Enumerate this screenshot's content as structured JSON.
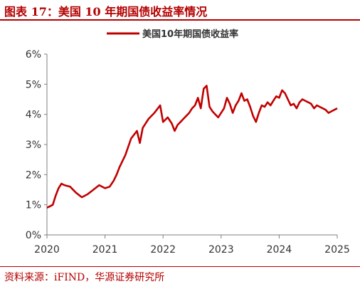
{
  "figure": {
    "title": "图表 17：美国 10 年期国债收益率情况",
    "source": "资料来源：iFIND，华源证券研究所"
  },
  "colors": {
    "line": "#c00000",
    "accent": "#b40000",
    "axis": "#7f7f7f"
  },
  "chart_data": {
    "type": "line",
    "title": "",
    "xlabel": "",
    "ylabel": "",
    "legend_position": "top-center",
    "grid": false,
    "x_ticks": [
      "2020",
      "2021",
      "2022",
      "2023",
      "2024",
      "2025"
    ],
    "y_ticks": [
      "0%",
      "1%",
      "2%",
      "3%",
      "4%",
      "5%",
      "6%"
    ],
    "ylim": [
      0,
      6
    ],
    "xlim": [
      2020.0,
      2025.0
    ],
    "series": [
      {
        "name": "美国10年期国债收益率",
        "x": [
          2020.0,
          2020.05,
          2020.1,
          2020.15,
          2020.2,
          2020.25,
          2020.3,
          2020.4,
          2020.5,
          2020.6,
          2020.7,
          2020.8,
          2020.9,
          2021.0,
          2021.08,
          2021.15,
          2021.2,
          2021.25,
          2021.35,
          2021.45,
          2021.55,
          2021.6,
          2021.65,
          2021.75,
          2021.85,
          2021.95,
          2022.0,
          2022.08,
          2022.15,
          2022.2,
          2022.25,
          2022.3,
          2022.35,
          2022.4,
          2022.45,
          2022.5,
          2022.55,
          2022.6,
          2022.65,
          2022.7,
          2022.75,
          2022.8,
          2022.85,
          2022.9,
          2022.95,
          2023.0,
          2023.05,
          2023.1,
          2023.15,
          2023.2,
          2023.25,
          2023.3,
          2023.35,
          2023.4,
          2023.45,
          2023.5,
          2023.55,
          2023.6,
          2023.65,
          2023.7,
          2023.75,
          2023.8,
          2023.85,
          2023.9,
          2023.95,
          2024.0,
          2024.05,
          2024.1,
          2024.15,
          2024.2,
          2024.25,
          2024.3,
          2024.35,
          2024.4,
          2024.45,
          2024.5,
          2024.55,
          2024.6,
          2024.65,
          2024.7,
          2024.75,
          2024.8,
          2024.85,
          2024.9,
          2024.95,
          2025.0
        ],
        "values": [
          0.9,
          0.95,
          1.0,
          1.3,
          1.55,
          1.7,
          1.65,
          1.6,
          1.4,
          1.25,
          1.35,
          1.5,
          1.65,
          1.55,
          1.6,
          1.8,
          2.0,
          2.25,
          2.65,
          3.2,
          3.45,
          3.05,
          3.55,
          3.85,
          4.05,
          4.3,
          3.75,
          3.9,
          3.7,
          3.45,
          3.65,
          3.75,
          3.85,
          3.95,
          4.05,
          4.2,
          4.3,
          4.55,
          4.2,
          4.85,
          4.95,
          4.25,
          4.1,
          4.0,
          3.9,
          4.05,
          4.2,
          4.55,
          4.35,
          4.05,
          4.3,
          4.45,
          4.7,
          4.45,
          4.5,
          4.25,
          3.95,
          3.75,
          4.05,
          4.3,
          4.25,
          4.4,
          4.3,
          4.45,
          4.6,
          4.55,
          4.8,
          4.7,
          4.5,
          4.3,
          4.35,
          4.2,
          4.4,
          4.5,
          4.45,
          4.4,
          4.35,
          4.2,
          4.3,
          4.25,
          4.2,
          4.15,
          4.05,
          4.1,
          4.15,
          4.2
        ]
      }
    ]
  }
}
